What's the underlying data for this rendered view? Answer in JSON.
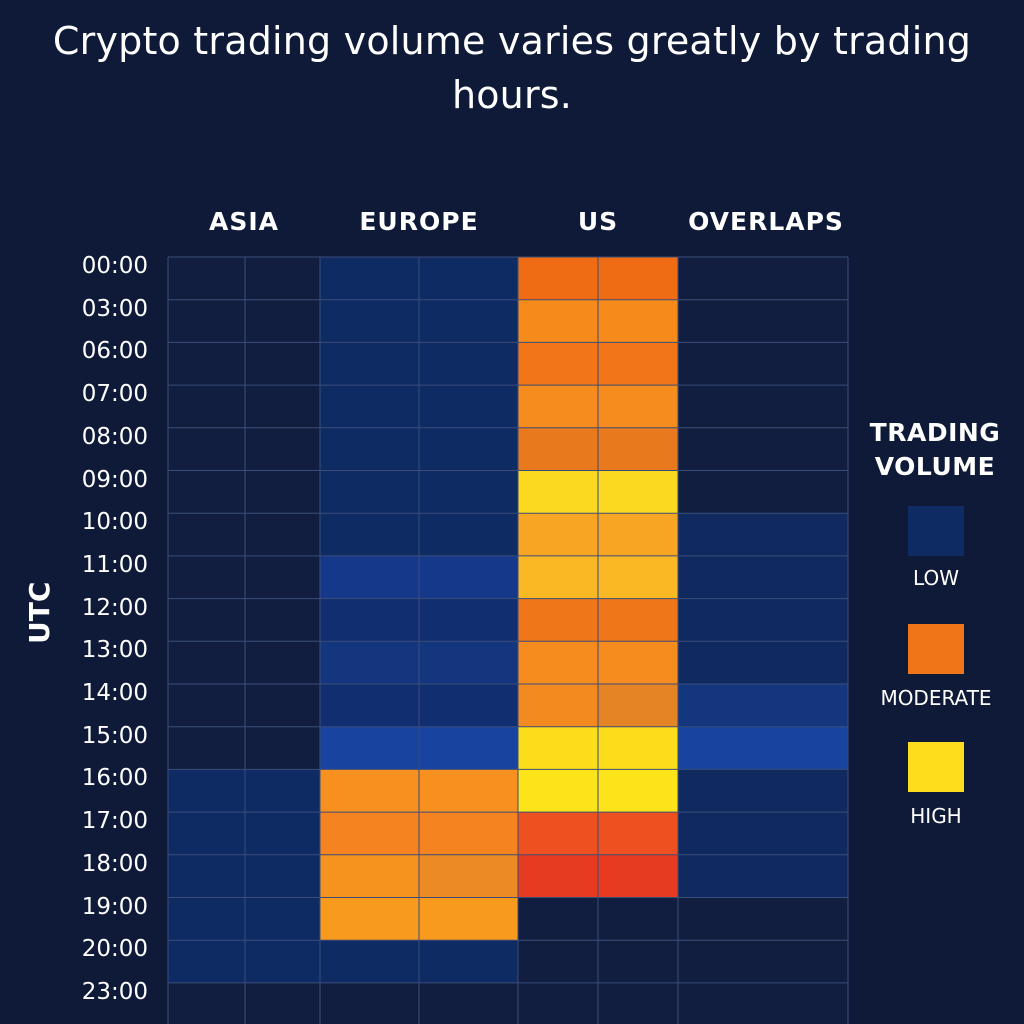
{
  "chart_data": {
    "type": "heatmap",
    "title": "Crypto trading volume varies greatly by trading hours.",
    "ylabel": "UTC",
    "columns": [
      "ASIA",
      "EUROPE",
      "US",
      "OVERLAPS"
    ],
    "rows": [
      "00:00",
      "03:00",
      "06:00",
      "07:00",
      "08:00",
      "09:00",
      "10:00",
      "11:00",
      "12:00",
      "13:00",
      "14:00",
      "15:00",
      "16:00",
      "17:00",
      "18:00",
      "19:00",
      "20:00",
      "23:00"
    ],
    "sub_columns_per_column": [
      2,
      2,
      2,
      1
    ],
    "cell_colors": [
      [
        "#111e3f",
        "#111e3f",
        "#0f2b64",
        "#0f2b64",
        "#f06c14",
        "#f06c14",
        "#111e3f"
      ],
      [
        "#111e3f",
        "#111e3f",
        "#0f2b64",
        "#0f2b64",
        "#f68b1c",
        "#f68b1c",
        "#111e3f"
      ],
      [
        "#111e3f",
        "#111e3f",
        "#0f2b64",
        "#0f2b64",
        "#f27618",
        "#f27618",
        "#111e3f"
      ],
      [
        "#111e3f",
        "#111e3f",
        "#0f2b64",
        "#0f2b64",
        "#f68c1e",
        "#f68c1e",
        "#111e3f"
      ],
      [
        "#111e3f",
        "#111e3f",
        "#0f2b64",
        "#0f2b64",
        "#e8791c",
        "#e8791c",
        "#111e3f"
      ],
      [
        "#111e3f",
        "#111e3f",
        "#0f2b64",
        "#0f2b64",
        "#fbd920",
        "#fbd920",
        "#111e3f"
      ],
      [
        "#111e3f",
        "#111e3f",
        "#0f2b64",
        "#0f2b64",
        "#f8a524",
        "#f8a524",
        "#102a60"
      ],
      [
        "#111e3f",
        "#111e3f",
        "#15388a",
        "#15388a",
        "#f9b824",
        "#f9b824",
        "#102a60"
      ],
      [
        "#111e3f",
        "#111e3f",
        "#112f70",
        "#112f70",
        "#f0761a",
        "#f0761a",
        "#102a60"
      ],
      [
        "#111e3f",
        "#111e3f",
        "#14367f",
        "#14367f",
        "#f68c1e",
        "#f68c1e",
        "#102a60"
      ],
      [
        "#111e3f",
        "#111e3f",
        "#112f70",
        "#112f70",
        "#f28a20",
        "#e58424",
        "#14367f"
      ],
      [
        "#111e3f",
        "#111e3f",
        "#1844a0",
        "#1844a0",
        "#fcdd1c",
        "#fcdd1c",
        "#1844a0"
      ],
      [
        "#0f2b64",
        "#0f2b64",
        "#f7901e",
        "#f7901e",
        "#fde41a",
        "#fde41a",
        "#102a60"
      ],
      [
        "#0f2b64",
        "#0f2b64",
        "#f58420",
        "#f58420",
        "#ee5020",
        "#ee5020",
        "#102a60"
      ],
      [
        "#0f2b64",
        "#0f2b64",
        "#f6921e",
        "#ec8a24",
        "#e63b20",
        "#e63b20",
        "#102a60"
      ],
      [
        "#0f2b64",
        "#0f2b64",
        "#f89a1e",
        "#f89a1e",
        "#111e3f",
        "#111e3f",
        "#111e3f"
      ],
      [
        "#0f2b64",
        "#0f2b64",
        "#0f2b64",
        "#0f2b64",
        "#111e3f",
        "#111e3f",
        "#111e3f"
      ],
      [
        "#111e3f",
        "#111e3f",
        "#111e3f",
        "#111e3f",
        "#111e3f",
        "#111e3f",
        "#111e3f"
      ]
    ],
    "grid": true,
    "legend": {
      "title_line1": "TRADING",
      "title_line2": "VOLUME",
      "position": "right",
      "items": [
        {
          "label": "LOW",
          "color": "#0f2b64"
        },
        {
          "label": "MODERATE",
          "color": "#f07418"
        },
        {
          "label": "HIGH",
          "color": "#fddd1c"
        }
      ]
    }
  }
}
